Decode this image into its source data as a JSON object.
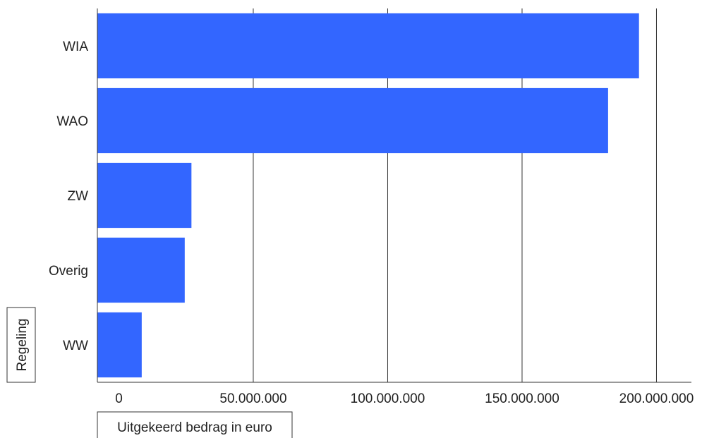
{
  "chart_data": {
    "type": "bar",
    "orientation": "horizontal",
    "categories": [
      "WIA",
      "WAO",
      "ZW",
      "Overig",
      "WW"
    ],
    "values": [
      193500000,
      182000000,
      27000000,
      24500000,
      8500000
    ],
    "title": "",
    "xlabel": "Uitgekeerd bedrag in euro",
    "ylabel": "Regeling",
    "xlim": [
      -8000000,
      213000000
    ],
    "xticks": [
      0,
      50000000,
      100000000,
      150000000,
      200000000
    ],
    "xtick_labels": [
      "0",
      "50.000.000",
      "100.000.000",
      "150.000.000",
      "200.000.000"
    ],
    "grid": "vertical",
    "bar_color": "#3366ff",
    "gridline_color": "#333333"
  }
}
